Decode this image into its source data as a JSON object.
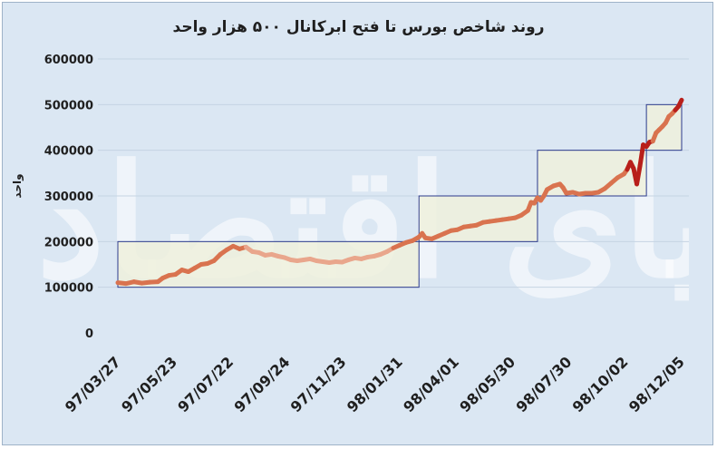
{
  "chart_data": {
    "type": "line",
    "title": "روند شاخص بورس تا فتح ابرکانال ۵۰۰ هزار واحد",
    "ylabel": "واحد",
    "xlabel": "",
    "ylim": [
      0,
      600000
    ],
    "yticks": [
      "0",
      "100000",
      "200000",
      "300000",
      "400000",
      "500000",
      "600000"
    ],
    "x_tick_labels": [
      "97/03/27",
      "97/05/23",
      "97/07/22",
      "97/09/24",
      "97/11/23",
      "98/01/31",
      "98/04/01",
      "98/05/30",
      "98/07/30",
      "98/10/02",
      "98/12/05"
    ],
    "grid": true,
    "watermark": "دنیای اقتصاد",
    "colors": {
      "line_light": "#e9a68c",
      "line_mid": "#d9734f",
      "line_dark": "#b81f1a",
      "box_fill": "#eef0dc",
      "box_border": "#2b3a8c",
      "background": "#dbe7f3"
    },
    "series": [
      {
        "values": [
          [
            0,
            110000
          ],
          [
            5,
            108000
          ],
          [
            10,
            112000
          ],
          [
            15,
            109000
          ],
          [
            20,
            111000
          ],
          [
            25,
            112000
          ],
          [
            28,
            120000
          ],
          [
            32,
            126000
          ],
          [
            36,
            128000
          ],
          [
            40,
            138000
          ],
          [
            44,
            134000
          ],
          [
            48,
            142000
          ],
          [
            52,
            150000
          ],
          [
            56,
            152000
          ],
          [
            60,
            158000
          ],
          [
            64,
            172000
          ],
          [
            68,
            182000
          ],
          [
            72,
            190000
          ],
          [
            76,
            184000
          ],
          [
            80,
            188000
          ],
          [
            84,
            178000
          ],
          [
            88,
            176000
          ],
          [
            92,
            170000
          ],
          [
            96,
            172000
          ],
          [
            100,
            168000
          ],
          [
            104,
            165000
          ],
          [
            108,
            160000
          ],
          [
            112,
            158000
          ],
          [
            116,
            160000
          ],
          [
            120,
            162000
          ],
          [
            124,
            158000
          ],
          [
            128,
            156000
          ],
          [
            132,
            154000
          ],
          [
            136,
            156000
          ],
          [
            140,
            155000
          ],
          [
            144,
            160000
          ],
          [
            148,
            164000
          ],
          [
            152,
            162000
          ],
          [
            156,
            166000
          ],
          [
            160,
            168000
          ],
          [
            164,
            172000
          ],
          [
            168,
            178000
          ],
          [
            172,
            186000
          ],
          [
            176,
            192000
          ],
          [
            180,
            198000
          ],
          [
            184,
            202000
          ],
          [
            188,
            210000
          ],
          [
            190,
            218000
          ],
          [
            192,
            208000
          ],
          [
            196,
            206000
          ],
          [
            200,
            212000
          ],
          [
            204,
            218000
          ],
          [
            208,
            224000
          ],
          [
            212,
            226000
          ],
          [
            216,
            232000
          ],
          [
            220,
            234000
          ],
          [
            224,
            236000
          ],
          [
            228,
            242000
          ],
          [
            232,
            244000
          ],
          [
            236,
            246000
          ],
          [
            240,
            248000
          ],
          [
            244,
            250000
          ],
          [
            248,
            252000
          ],
          [
            252,
            258000
          ],
          [
            256,
            268000
          ],
          [
            258,
            286000
          ],
          [
            260,
            284000
          ],
          [
            262,
            296000
          ],
          [
            264,
            290000
          ],
          [
            266,
            300000
          ],
          [
            268,
            314000
          ],
          [
            272,
            322000
          ],
          [
            276,
            326000
          ],
          [
            278,
            318000
          ],
          [
            280,
            306000
          ],
          [
            284,
            308000
          ],
          [
            288,
            304000
          ],
          [
            292,
            306000
          ],
          [
            296,
            306000
          ],
          [
            300,
            308000
          ],
          [
            304,
            316000
          ],
          [
            308,
            328000
          ],
          [
            312,
            340000
          ],
          [
            316,
            348000
          ],
          [
            318,
            358000
          ],
          [
            320,
            374000
          ],
          [
            322,
            360000
          ],
          [
            324,
            326000
          ],
          [
            326,
            366000
          ],
          [
            328,
            412000
          ],
          [
            330,
            408000
          ],
          [
            332,
            418000
          ],
          [
            334,
            420000
          ],
          [
            336,
            438000
          ],
          [
            338,
            445000
          ],
          [
            340,
            452000
          ],
          [
            342,
            460000
          ],
          [
            344,
            474000
          ],
          [
            346,
            480000
          ],
          [
            348,
            488000
          ],
          [
            350,
            496000
          ],
          [
            352,
            510000
          ]
        ]
      }
    ],
    "highlight_boxes": [
      {
        "x0": 0,
        "x1": 188,
        "y0": 100000,
        "y1": 200000
      },
      {
        "x0": 188,
        "x1": 262,
        "y0": 200000,
        "y1": 300000
      },
      {
        "x0": 262,
        "x1": 330,
        "y0": 300000,
        "y1": 400000
      },
      {
        "x0": 330,
        "x1": 352,
        "y0": 400000,
        "y1": 500000
      }
    ]
  }
}
